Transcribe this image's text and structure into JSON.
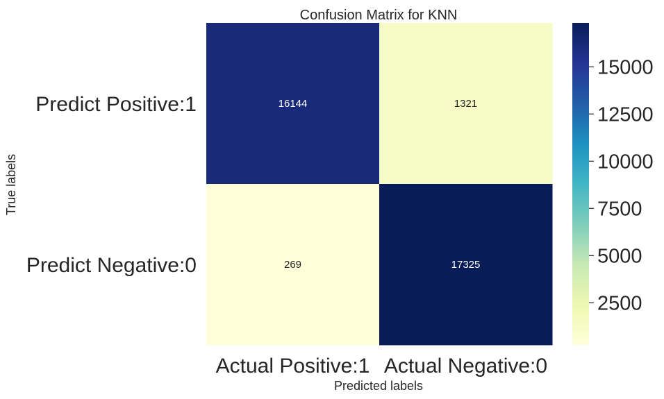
{
  "chart_data": {
    "type": "heatmap",
    "title": "Confusion Matrix for KNN",
    "xlabel": "Predicted labels",
    "ylabel": "True labels",
    "x_categories": [
      "Actual Positive:1",
      "Actual Negative:0"
    ],
    "y_categories": [
      "Predict Positive:1",
      "Predict Negative:0"
    ],
    "values": [
      [
        16144,
        1321
      ],
      [
        269,
        17325
      ]
    ],
    "colormap": "YlGnBu",
    "colorbar": {
      "min": 269,
      "max": 17325,
      "ticks": [
        2500,
        5000,
        7500,
        10000,
        12500,
        15000
      ]
    },
    "grid": false
  }
}
